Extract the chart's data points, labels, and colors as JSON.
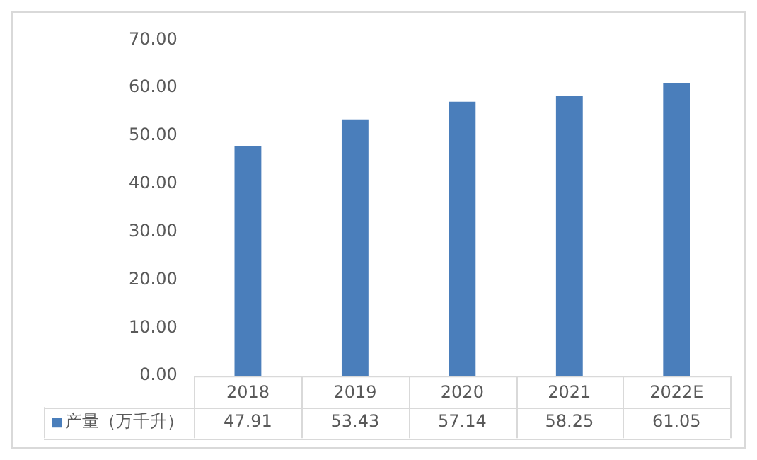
{
  "chart_data": {
    "type": "bar",
    "categories": [
      "2018",
      "2019",
      "2020",
      "2021",
      "2022E"
    ],
    "series": [
      {
        "name": "产量（万千升）",
        "color": "#4a7ebb",
        "values": [
          47.91,
          53.43,
          57.14,
          58.25,
          61.05
        ]
      }
    ],
    "ylim": [
      0,
      70
    ],
    "yticks": [
      {
        "value": 0,
        "label": "0.00"
      },
      {
        "value": 10,
        "label": "10.00"
      },
      {
        "value": 20,
        "label": "20.00"
      },
      {
        "value": 30,
        "label": "30.00"
      },
      {
        "value": 40,
        "label": "40.00"
      },
      {
        "value": 50,
        "label": "50.00"
      },
      {
        "value": 60,
        "label": "60.00"
      },
      {
        "value": 70,
        "label": "70.00"
      }
    ],
    "grid": false,
    "legend": "bottom left",
    "data_labels": true
  }
}
